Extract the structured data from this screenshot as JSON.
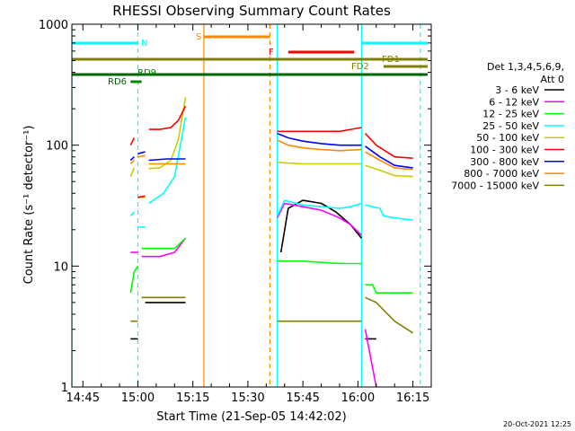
{
  "chart_data": {
    "type": "line",
    "title": "RHESSI Observing Summary Count Rates",
    "xlabel": "Start Time (21-Sep-05 14:42:02)",
    "ylabel": "Count Rate (s⁻¹ detector⁻¹)",
    "ylog": true,
    "ylim": [
      1,
      1000
    ],
    "xlim": [
      "14:42",
      "16:20"
    ],
    "x_ticks": [
      "14:45",
      "15:00",
      "15:15",
      "15:30",
      "15:45",
      "16:00",
      "16:15"
    ],
    "y_ticks": [
      "1",
      "10",
      "100",
      "1000"
    ],
    "footer": "20-Oct-2021 12:25",
    "legend_header": [
      "Det 1,3,4,5,6,9,",
      "Att 0"
    ],
    "legend_position": "right",
    "series": [
      {
        "name": "3 - 6 keV",
        "color": "#000000",
        "segments": [
          {
            "x": [
              "14:58",
              "15:00"
            ],
            "y": [
              2.5,
              2.5
            ]
          },
          {
            "x": [
              "15:02",
              "15:13"
            ],
            "y": [
              5,
              5
            ]
          },
          {
            "x": [
              "15:39",
              "15:41",
              "15:45",
              "15:50",
              "15:54",
              "15:58",
              "16:01"
            ],
            "y": [
              13,
              30,
              35,
              33,
              28,
              22,
              17
            ]
          },
          {
            "x": [
              "16:02",
              "16:05"
            ],
            "y": [
              2.5,
              2.5
            ]
          }
        ]
      },
      {
        "name": "6 - 12 keV",
        "color": "#ff00ff",
        "segments": [
          {
            "x": [
              "14:58",
              "15:00"
            ],
            "y": [
              13,
              13
            ]
          },
          {
            "x": [
              "15:01",
              "15:06",
              "15:10",
              "15:13"
            ],
            "y": [
              12,
              12,
              13,
              17
            ]
          },
          {
            "x": [
              "15:38",
              "15:40",
              "15:45",
              "15:50",
              "15:55",
              "15:58",
              "16:01"
            ],
            "y": [
              25,
              33,
              31,
              29,
              25,
              22,
              18
            ]
          },
          {
            "x": [
              "16:02",
              "16:05"
            ],
            "y": [
              3,
              1
            ]
          }
        ]
      },
      {
        "name": "12 - 25 keV",
        "color": "#00ff00",
        "segments": [
          {
            "x": [
              "14:58",
              "14:59",
              "15:00"
            ],
            "y": [
              6,
              9,
              10
            ]
          },
          {
            "x": [
              "15:01",
              "15:06",
              "15:10",
              "15:13"
            ],
            "y": [
              14,
              14,
              14,
              17
            ]
          },
          {
            "x": [
              "15:38",
              "15:45",
              "15:55",
              "16:01"
            ],
            "y": [
              11,
              11,
              10.5,
              10.5
            ]
          },
          {
            "x": [
              "16:02",
              "16:04",
              "16:05",
              "16:10",
              "16:15"
            ],
            "y": [
              7,
              7,
              6,
              6,
              6
            ]
          }
        ]
      },
      {
        "name": "25 - 50 keV",
        "color": "#00ffff",
        "segments": [
          {
            "x": [
              "14:58",
              "14:59"
            ],
            "y": [
              26,
              28
            ]
          },
          {
            "x": [
              "15:00",
              "15:02"
            ],
            "y": [
              21,
              21
            ]
          },
          {
            "x": [
              "15:03",
              "15:07",
              "15:10",
              "15:13"
            ],
            "y": [
              33,
              40,
              55,
              170
            ]
          },
          {
            "x": [
              "15:38",
              "15:40",
              "15:45",
              "15:50",
              "15:55",
              "15:58",
              "16:01"
            ],
            "y": [
              26,
              35,
              32,
              31,
              30,
              31,
              33
            ]
          },
          {
            "x": [
              "16:02",
              "16:06",
              "16:07",
              "16:10",
              "16:15"
            ],
            "y": [
              32,
              30,
              26,
              25,
              24
            ]
          }
        ]
      },
      {
        "name": "50 - 100 keV",
        "color": "#cccc00",
        "segments": [
          {
            "x": [
              "14:58",
              "14:59"
            ],
            "y": [
              55,
              65
            ]
          },
          {
            "x": [
              "15:00",
              "15:02"
            ],
            "y": [
              37,
              37
            ]
          },
          {
            "x": [
              "15:03",
              "15:06",
              "15:09",
              "15:11",
              "15:13"
            ],
            "y": [
              64,
              65,
              75,
              110,
              250
            ]
          },
          {
            "x": [
              "15:38",
              "15:45",
              "15:55",
              "16:01"
            ],
            "y": [
              72,
              70,
              70,
              70
            ]
          },
          {
            "x": [
              "16:02",
              "16:06",
              "16:10",
              "16:15"
            ],
            "y": [
              68,
              62,
              56,
              55
            ]
          }
        ]
      },
      {
        "name": "100 - 300 keV",
        "color": "#ff0000",
        "segments": [
          {
            "x": [
              "14:58",
              "14:59"
            ],
            "y": [
              100,
              115
            ]
          },
          {
            "x": [
              "15:00",
              "15:02"
            ],
            "y": [
              37,
              38
            ]
          },
          {
            "x": [
              "15:03",
              "15:06",
              "15:09",
              "15:11",
              "15:13"
            ],
            "y": [
              135,
              135,
              140,
              160,
              210
            ]
          },
          {
            "x": [
              "15:38",
              "15:41",
              "15:45",
              "15:50",
              "15:55",
              "16:01"
            ],
            "y": [
              130,
              130,
              130,
              130,
              130,
              140
            ]
          },
          {
            "x": [
              "16:02",
              "16:05",
              "16:10",
              "16:15"
            ],
            "y": [
              125,
              100,
              80,
              78
            ]
          }
        ]
      },
      {
        "name": "300 - 800 keV",
        "color": "#0000ff",
        "segments": [
          {
            "x": [
              "14:58",
              "14:59"
            ],
            "y": [
              75,
              80
            ]
          },
          {
            "x": [
              "15:00",
              "15:02"
            ],
            "y": [
              85,
              88
            ]
          },
          {
            "x": [
              "15:03",
              "15:08",
              "15:13"
            ],
            "y": [
              75,
              77,
              77
            ]
          },
          {
            "x": [
              "15:38",
              "15:41",
              "15:45",
              "15:50",
              "15:55",
              "16:01"
            ],
            "y": [
              125,
              115,
              108,
              103,
              100,
              100
            ]
          },
          {
            "x": [
              "16:02",
              "16:06",
              "16:10",
              "16:15"
            ],
            "y": [
              98,
              80,
              68,
              65
            ]
          }
        ]
      },
      {
        "name": "800 - 7000 keV",
        "color": "#ff8800",
        "segments": [
          {
            "x": [
              "14:58",
              "14:59"
            ],
            "y": [
              70,
              75
            ]
          },
          {
            "x": [
              "15:00",
              "15:02"
            ],
            "y": [
              80,
              82
            ]
          },
          {
            "x": [
              "15:03",
              "15:08",
              "15:13"
            ],
            "y": [
              70,
              70,
              70
            ]
          },
          {
            "x": [
              "15:38",
              "15:41",
              "15:45",
              "15:50",
              "15:55",
              "16:01"
            ],
            "y": [
              110,
              100,
              95,
              92,
              90,
              92
            ]
          },
          {
            "x": [
              "16:02",
              "16:06",
              "16:10",
              "16:15"
            ],
            "y": [
              88,
              75,
              65,
              63
            ]
          }
        ]
      },
      {
        "name": "7000 - 15000 keV",
        "color": "#808000",
        "segments": [
          {
            "x": [
              "14:58",
              "15:00"
            ],
            "y": [
              3.5,
              3.5
            ]
          },
          {
            "x": [
              "15:01",
              "15:13"
            ],
            "y": [
              5.5,
              5.5
            ]
          },
          {
            "x": [
              "15:38",
              "15:45",
              "15:55",
              "16:01"
            ],
            "y": [
              3.5,
              3.5,
              3.5,
              3.5
            ]
          },
          {
            "x": [
              "16:02",
              "16:05",
              "16:10",
              "16:15"
            ],
            "y": [
              5.5,
              5,
              3.5,
              2.8
            ]
          }
        ]
      }
    ],
    "vertical_markers": [
      {
        "time": "14:42",
        "color": "#00ffff",
        "style": "solid"
      },
      {
        "time": "15:00",
        "color": "#00ffff",
        "style": "dashed"
      },
      {
        "time": "15:18",
        "color": "#ff8800",
        "style": "solid"
      },
      {
        "time": "15:36",
        "color": "#ff8800",
        "style": "dashed"
      },
      {
        "time": "15:38",
        "color": "#00ffff",
        "style": "solid"
      },
      {
        "time": "16:01",
        "color": "#00ffff",
        "style": "solid"
      },
      {
        "time": "16:17",
        "color": "#00ffff",
        "style": "dashed"
      }
    ],
    "flag_bars": [
      {
        "label": "N",
        "color": "#00ffff",
        "level": 1,
        "ranges": [
          [
            "14:42",
            "15:00"
          ],
          [
            "16:01",
            "16:19"
          ]
        ]
      },
      {
        "label": "S",
        "color": "#ff8800",
        "level": 2,
        "ranges": [
          [
            "15:18",
            "15:36"
          ]
        ]
      },
      {
        "label": "F",
        "color": "#ff0000",
        "level": 3,
        "ranges": [
          [
            "15:41",
            "15:59"
          ]
        ]
      },
      {
        "label": "FD1",
        "color": "#808000",
        "level": 4,
        "ranges": [
          [
            "14:42",
            "16:19"
          ]
        ]
      },
      {
        "label": "FD2",
        "color": "#808000",
        "level": 5,
        "ranges": [
          [
            "16:07",
            "16:19"
          ]
        ]
      },
      {
        "label": "RD6",
        "color": "#006600",
        "level": 6,
        "ranges": [
          [
            "14:42",
            "16:19"
          ]
        ]
      },
      {
        "label": "RD9",
        "color": "#008800",
        "level": 7,
        "ranges": [
          [
            "14:58",
            "15:01"
          ]
        ]
      }
    ]
  }
}
